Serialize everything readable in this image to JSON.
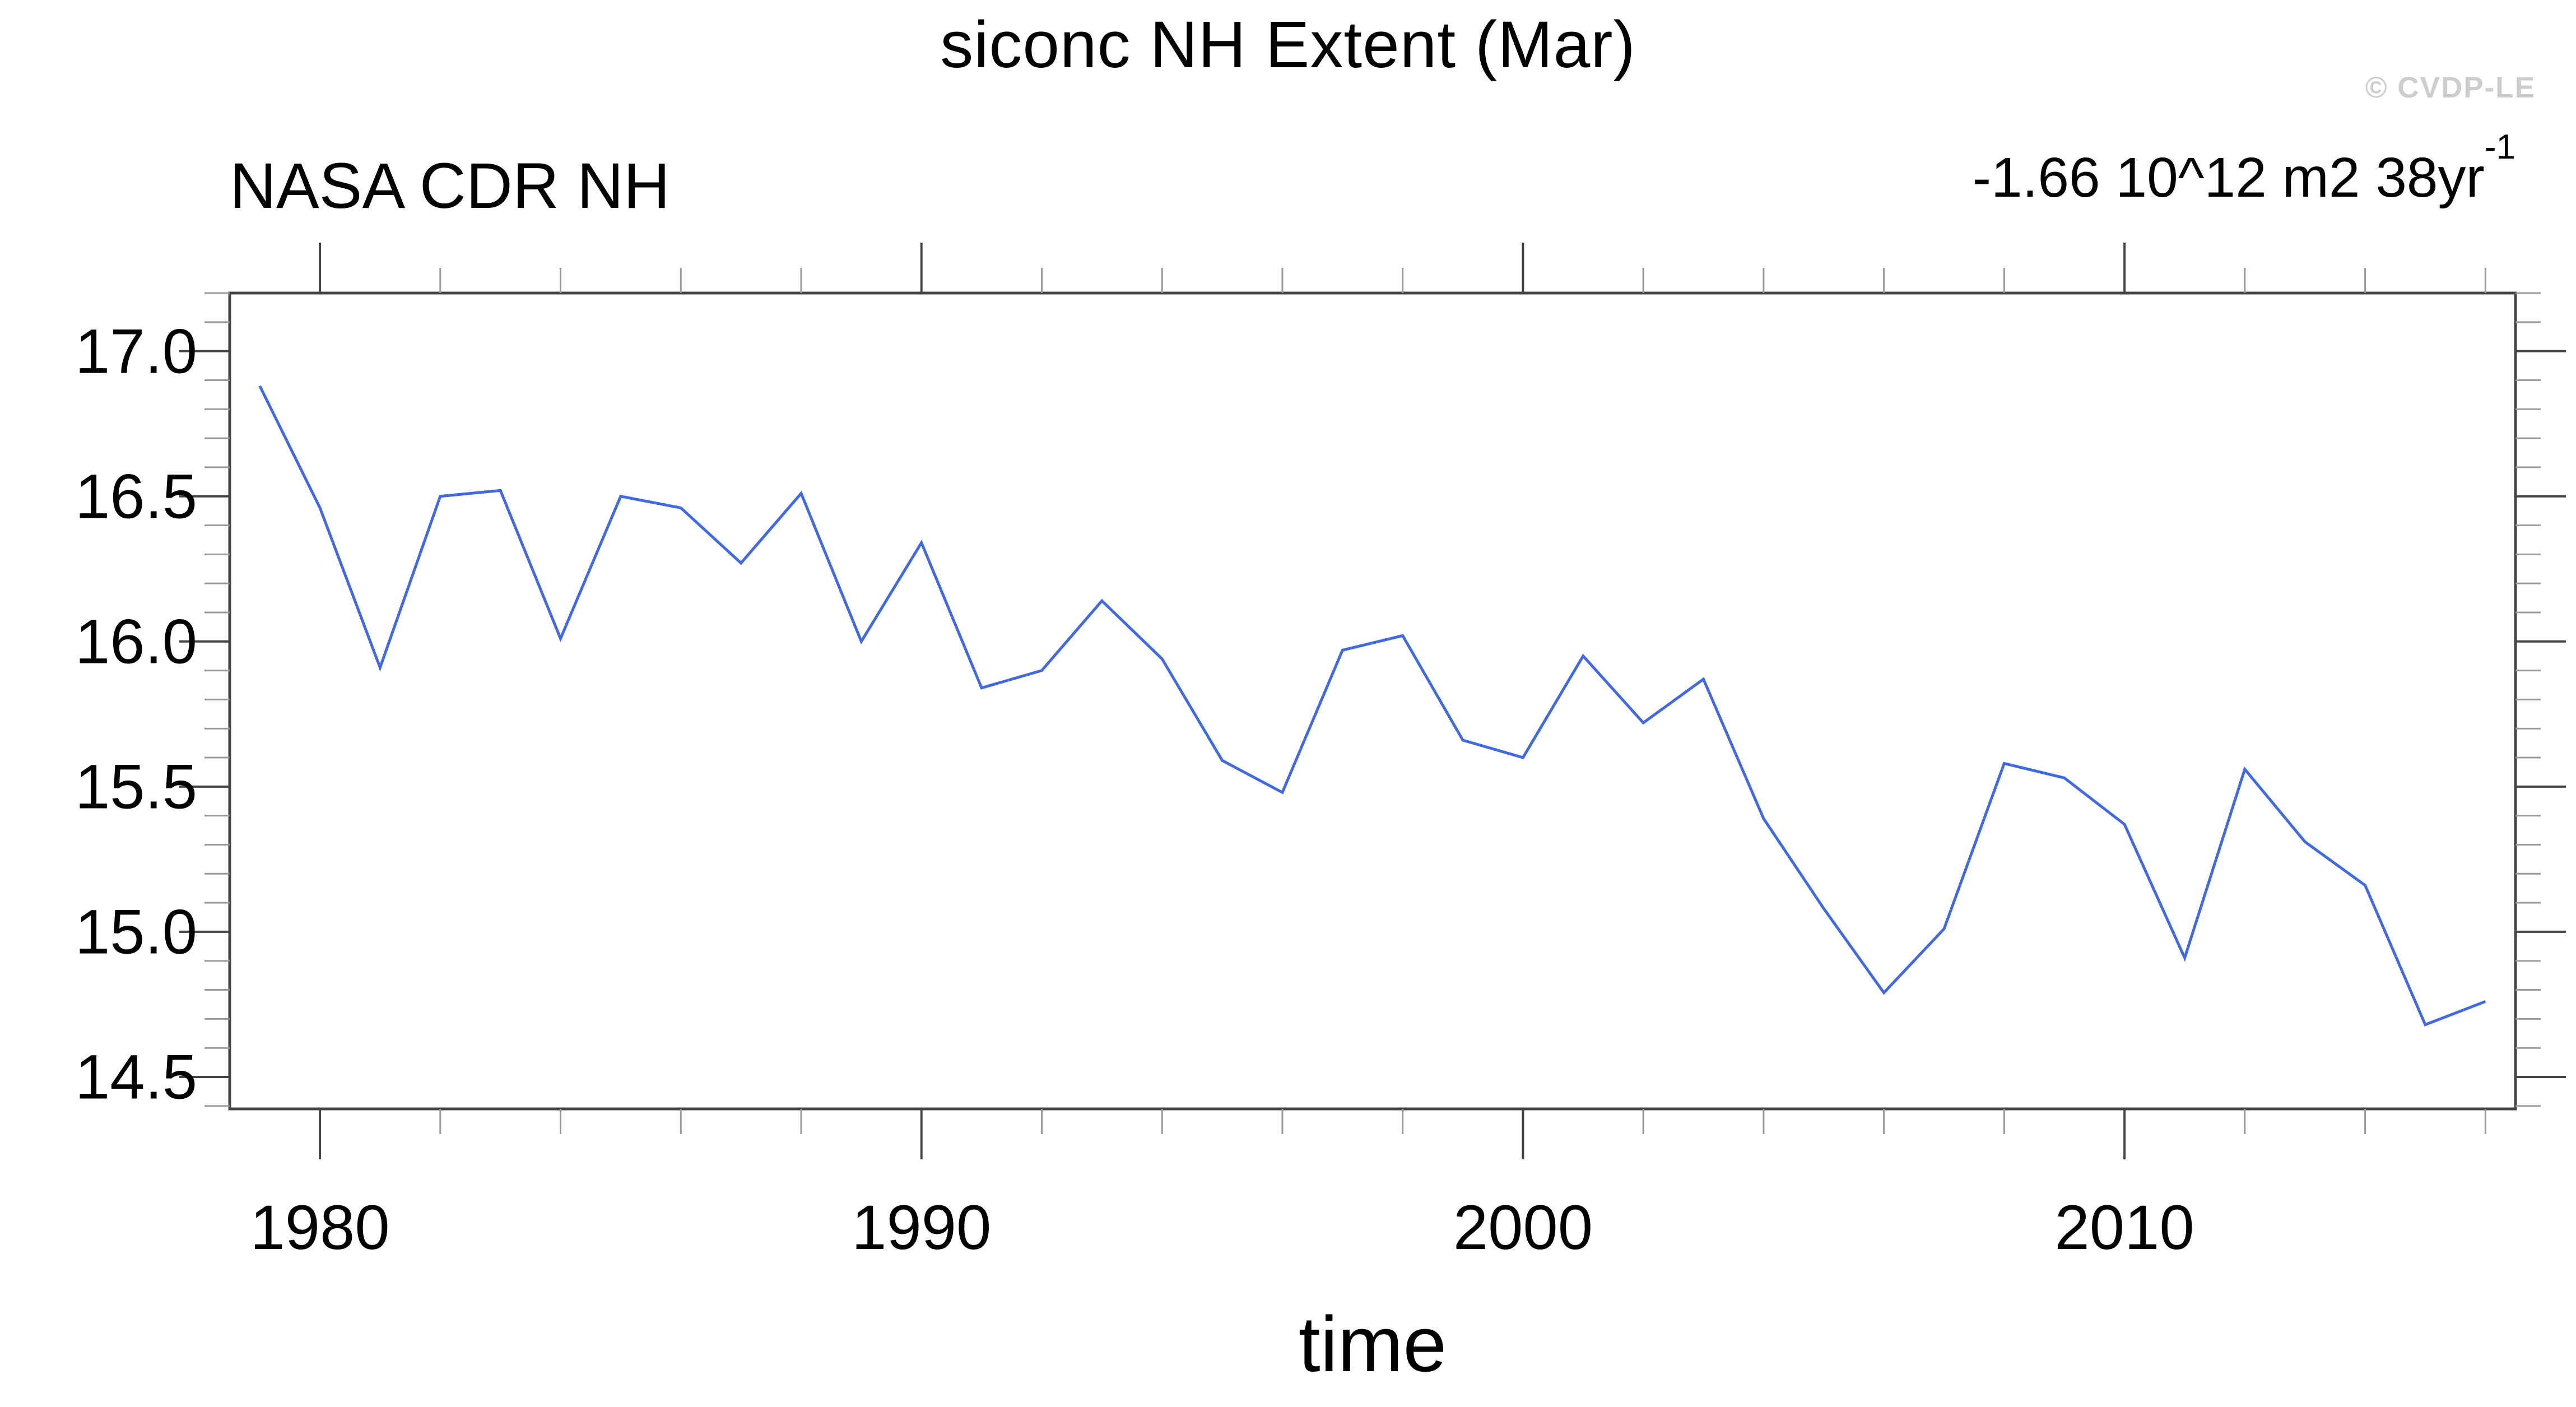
{
  "title": "siconc NH Extent (Mar)",
  "series_label": "NASA CDR NH",
  "trend_annotation": {
    "text": "-1.66 10^12 m2 38yr",
    "exponent": "-1"
  },
  "watermark": "© CVDP-LE",
  "chart_data": {
    "type": "line",
    "title": "siconc NH Extent (Mar)",
    "xlabel": "time",
    "ylabel": "",
    "grid": false,
    "legend_position": "none",
    "line_color": "#4169e1",
    "axis_color": "#444444",
    "minor_tick_color": "#999999",
    "xlim": [
      1978.5,
      2016.5
    ],
    "ylim": [
      14.39,
      17.2
    ],
    "x_major_ticks": [
      1980,
      1990,
      2000,
      2010
    ],
    "x_minor_tick_step_years": 2,
    "y_major_ticks": [
      14.5,
      15.0,
      15.5,
      16.0,
      16.5,
      17.0
    ],
    "y_minor_tick_step": 0.1,
    "series": [
      {
        "name": "NASA CDR NH",
        "x": [
          1979,
          1980,
          1981,
          1982,
          1983,
          1984,
          1985,
          1986,
          1987,
          1988,
          1989,
          1990,
          1991,
          1992,
          1993,
          1994,
          1995,
          1996,
          1997,
          1998,
          1999,
          2000,
          2001,
          2002,
          2003,
          2004,
          2005,
          2006,
          2007,
          2008,
          2009,
          2010,
          2011,
          2012,
          2013,
          2014,
          2015,
          2016
        ],
        "values": [
          16.88,
          16.46,
          15.91,
          16.5,
          16.52,
          16.01,
          16.5,
          16.46,
          16.27,
          16.51,
          16.0,
          16.34,
          15.84,
          15.9,
          16.14,
          15.94,
          15.59,
          15.48,
          15.97,
          16.02,
          15.66,
          15.6,
          15.95,
          15.72,
          15.87,
          15.39,
          15.08,
          14.79,
          15.01,
          15.58,
          15.53,
          15.37,
          14.91,
          15.56,
          15.31,
          15.16,
          14.68,
          14.76
        ]
      }
    ]
  }
}
